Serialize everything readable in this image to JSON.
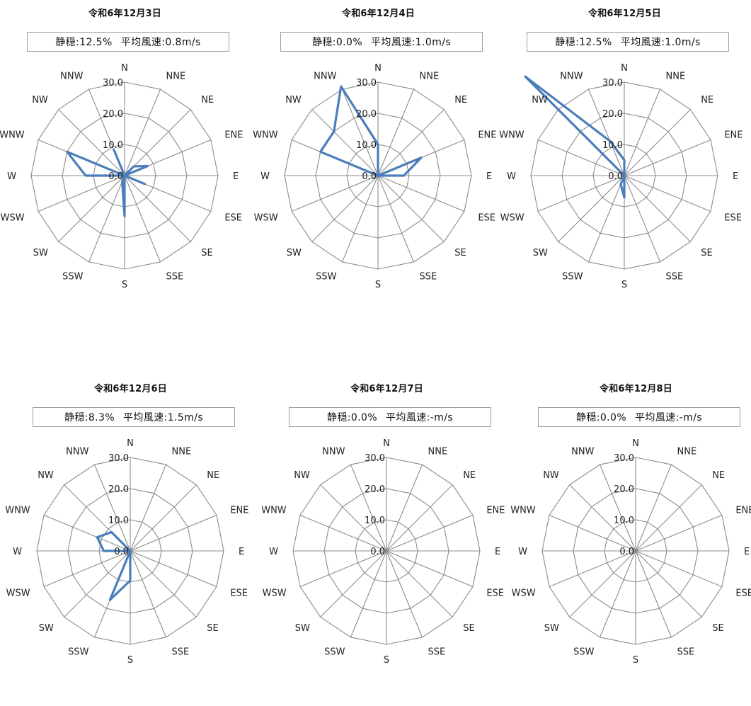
{
  "chart_data": [
    {
      "type": "radar",
      "title": "令和6年12月3日",
      "calm_label": "静穏:12.5%",
      "avg_wind_label": "平均風速:0.8m/s",
      "directions": [
        "N",
        "NNE",
        "NE",
        "ENE",
        "E",
        "ESE",
        "SE",
        "SSE",
        "S",
        "SSW",
        "SW",
        "WSW",
        "W",
        "WNW",
        "NW",
        "NNW"
      ],
      "radial_ticks": [
        "0.0",
        "10.0",
        "20.0",
        "30.0"
      ],
      "rlim": [
        0,
        30
      ],
      "grid": true,
      "series_color": "#4a7ebb",
      "values": [
        0,
        0,
        4.2,
        8,
        0,
        7,
        0,
        0,
        13,
        2,
        0,
        0,
        12.5,
        20,
        0,
        9
      ]
    },
    {
      "type": "radar",
      "title": "令和6年12月4日",
      "calm_label": "静穏:0.0%",
      "avg_wind_label": "平均風速:1.0m/s",
      "directions": [
        "N",
        "NNE",
        "NE",
        "ENE",
        "E",
        "ESE",
        "SE",
        "SSE",
        "S",
        "SSW",
        "SW",
        "WSW",
        "W",
        "WNW",
        "NW",
        "NNW"
      ],
      "radial_ticks": [
        "0.0",
        "10.0",
        "20.0",
        "30.0"
      ],
      "rlim": [
        0,
        30
      ],
      "grid": true,
      "series_color": "#4a7ebb",
      "values": [
        10,
        0,
        0,
        15,
        8.3,
        0,
        0,
        0,
        0,
        0,
        0,
        0,
        0,
        20,
        20,
        31
      ]
    },
    {
      "type": "radar",
      "title": "令和6年12月5日",
      "calm_label": "静穏:12.5%",
      "avg_wind_label": "平均風速:1.0m/s",
      "directions": [
        "N",
        "NNE",
        "NE",
        "ENE",
        "E",
        "ESE",
        "SE",
        "SSE",
        "S",
        "SSW",
        "SW",
        "WSW",
        "W",
        "WNW",
        "NW",
        "NNW"
      ],
      "radial_ticks": [
        "0.0",
        "10.0",
        "20.0",
        "30.0"
      ],
      "rlim": [
        0,
        30
      ],
      "grid": true,
      "series_color": "#4a7ebb",
      "values": [
        5,
        0,
        0,
        0,
        0,
        0,
        0,
        0,
        7,
        3,
        0,
        0,
        0,
        0,
        45,
        12
      ]
    },
    {
      "type": "radar",
      "title": "令和6年12月6日",
      "calm_label": "静穏:8.3%",
      "avg_wind_label": "平均風速:1.5m/s",
      "directions": [
        "N",
        "NNE",
        "NE",
        "ENE",
        "E",
        "ESE",
        "SE",
        "SSE",
        "S",
        "SSW",
        "SW",
        "WSW",
        "W",
        "WNW",
        "NW",
        "NNW"
      ],
      "radial_ticks": [
        "0.0",
        "10.0",
        "20.0",
        "30.0"
      ],
      "rlim": [
        0,
        30
      ],
      "grid": true,
      "series_color": "#4a7ebb",
      "values": [
        0,
        0,
        0,
        0,
        0,
        0,
        0,
        0,
        9.5,
        17,
        0,
        0,
        8.5,
        11.5,
        8.5,
        0
      ]
    },
    {
      "type": "radar",
      "title": "令和6年12月7日",
      "calm_label": "静穏:0.0%",
      "avg_wind_label": "平均風速:-m/s",
      "directions": [
        "N",
        "NNE",
        "NE",
        "ENE",
        "E",
        "ESE",
        "SE",
        "SSE",
        "S",
        "SSW",
        "SW",
        "WSW",
        "W",
        "WNW",
        "NW",
        "NNW"
      ],
      "radial_ticks": [
        "0.0",
        "10.0",
        "20.0",
        "30.0"
      ],
      "rlim": [
        0,
        30
      ],
      "grid": true,
      "series_color": "#4a7ebb",
      "values": [
        0,
        0,
        0,
        0,
        0,
        0,
        0,
        0,
        0,
        0,
        0,
        0,
        0,
        0,
        0,
        0
      ]
    },
    {
      "type": "radar",
      "title": "令和6年12月8日",
      "calm_label": "静穏:0.0%",
      "avg_wind_label": "平均風速:-m/s",
      "directions": [
        "N",
        "NNE",
        "NE",
        "ENE",
        "E",
        "ESE",
        "SE",
        "SSE",
        "S",
        "SSW",
        "SW",
        "WSW",
        "W",
        "WNW",
        "NW",
        "NNW"
      ],
      "radial_ticks": [
        "0.0",
        "10.0",
        "20.0",
        "30.0"
      ],
      "rlim": [
        0,
        30
      ],
      "grid": true,
      "series_color": "#4a7ebb",
      "values": [
        0,
        0,
        0,
        0,
        0,
        0,
        0,
        0,
        0,
        0,
        0,
        0,
        0,
        0,
        0,
        0
      ]
    }
  ]
}
